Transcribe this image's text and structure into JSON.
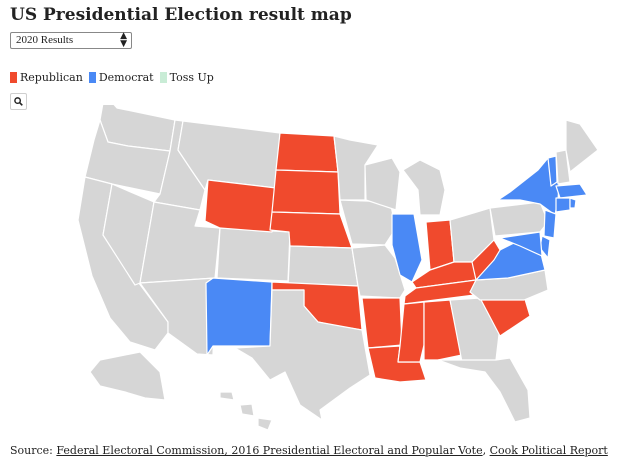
{
  "title": "US Presidential Election result map",
  "selector": {
    "value": "2020 Results"
  },
  "legend": [
    {
      "label": "Republican",
      "color": "#f04a2d"
    },
    {
      "label": "Democrat",
      "color": "#4a89f5"
    },
    {
      "label": "Toss Up",
      "color": "#c9ecd6"
    }
  ],
  "colors": {
    "land": "#d6d6d6",
    "border": "#ffffff"
  },
  "map": {
    "states": [
      {
        "state": "Washington",
        "result": "none"
      },
      {
        "state": "Oregon",
        "result": "none"
      },
      {
        "state": "California",
        "result": "none"
      },
      {
        "state": "Idaho",
        "result": "none"
      },
      {
        "state": "Nevada",
        "result": "none"
      },
      {
        "state": "Montana",
        "result": "none"
      },
      {
        "state": "Utah",
        "result": "none"
      },
      {
        "state": "Arizona",
        "result": "none"
      },
      {
        "state": "Colorado",
        "result": "none"
      },
      {
        "state": "Wyoming",
        "result": "Republican"
      },
      {
        "state": "North Dakota",
        "result": "Republican"
      },
      {
        "state": "South Dakota",
        "result": "Republican"
      },
      {
        "state": "Nebraska",
        "result": "Republican"
      },
      {
        "state": "New Mexico",
        "result": "Democrat"
      },
      {
        "state": "Kansas",
        "result": "none"
      },
      {
        "state": "Oklahoma",
        "result": "Republican"
      },
      {
        "state": "Texas",
        "result": "none"
      },
      {
        "state": "Minnesota",
        "result": "none"
      },
      {
        "state": "Iowa",
        "result": "none"
      },
      {
        "state": "Missouri",
        "result": "none"
      },
      {
        "state": "Arkansas",
        "result": "Republican"
      },
      {
        "state": "Louisiana",
        "result": "Republican"
      },
      {
        "state": "Wisconsin",
        "result": "none"
      },
      {
        "state": "Illinois",
        "result": "Democrat"
      },
      {
        "state": "Michigan",
        "result": "none"
      },
      {
        "state": "Indiana",
        "result": "Republican"
      },
      {
        "state": "Ohio",
        "result": "none"
      },
      {
        "state": "Kentucky",
        "result": "Republican"
      },
      {
        "state": "Tennessee",
        "result": "Republican"
      },
      {
        "state": "Mississippi",
        "result": "Republican"
      },
      {
        "state": "Alabama",
        "result": "Republican"
      },
      {
        "state": "Georgia",
        "result": "none"
      },
      {
        "state": "Florida",
        "result": "none"
      },
      {
        "state": "South Carolina",
        "result": "Republican"
      },
      {
        "state": "North Carolina",
        "result": "none"
      },
      {
        "state": "Virginia",
        "result": "Democrat"
      },
      {
        "state": "West Virginia",
        "result": "Republican"
      },
      {
        "state": "Pennsylvania",
        "result": "none"
      },
      {
        "state": "New York",
        "result": "Democrat"
      },
      {
        "state": "New Jersey",
        "result": "Democrat"
      },
      {
        "state": "Delaware",
        "result": "Democrat"
      },
      {
        "state": "Maryland",
        "result": "Democrat"
      },
      {
        "state": "Vermont",
        "result": "Democrat"
      },
      {
        "state": "New Hampshire",
        "result": "none"
      },
      {
        "state": "Maine",
        "result": "none"
      },
      {
        "state": "Massachusetts",
        "result": "Democrat"
      },
      {
        "state": "Connecticut",
        "result": "Democrat"
      },
      {
        "state": "Rhode Island",
        "result": "Democrat"
      },
      {
        "state": "Alaska",
        "result": "none"
      },
      {
        "state": "Hawaii",
        "result": "none"
      }
    ]
  },
  "source": {
    "prefix": "Source: ",
    "links": [
      "Federal Electoral Commission, 2016 Presidential Electoral and Popular Vote",
      "Cook Political Report"
    ],
    "separator": ", "
  }
}
